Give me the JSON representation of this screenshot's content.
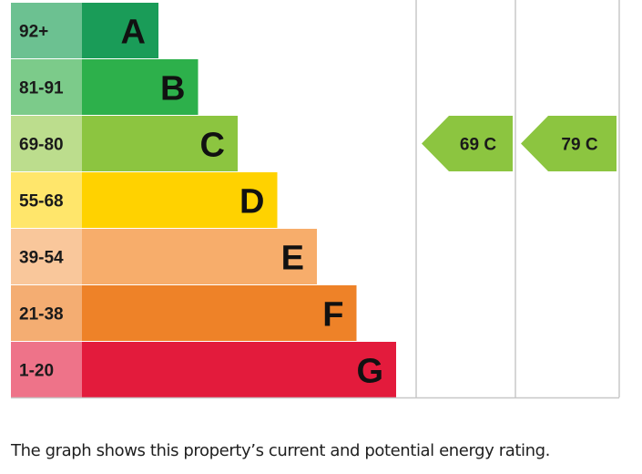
{
  "chart_data": {
    "type": "bar",
    "bands": [
      {
        "range": "92+",
        "letter": "A",
        "color": "#1a9c58",
        "range_color": "#6cc191"
      },
      {
        "range": "81-91",
        "letter": "B",
        "color": "#2db04b",
        "range_color": "#7ccb8a"
      },
      {
        "range": "69-80",
        "letter": "C",
        "color": "#8cc540",
        "range_color": "#bcdd8d"
      },
      {
        "range": "55-68",
        "letter": "D",
        "color": "#ffd200",
        "range_color": "#ffe66b"
      },
      {
        "range": "39-54",
        "letter": "E",
        "color": "#f7ad6b",
        "range_color": "#f9c79b"
      },
      {
        "range": "21-38",
        "letter": "F",
        "color": "#ee8228",
        "range_color": "#f4ad72"
      },
      {
        "range": "1-20",
        "letter": "G",
        "color": "#e31b3c",
        "range_color": "#ee7389"
      }
    ],
    "current": {
      "value": 69,
      "letter": "C",
      "label": "69 C",
      "color": "#8cc540"
    },
    "potential": {
      "value": 79,
      "letter": "C",
      "label": "79 C",
      "color": "#8cc540"
    }
  },
  "caption": "The graph shows this property’s current and potential energy rating."
}
